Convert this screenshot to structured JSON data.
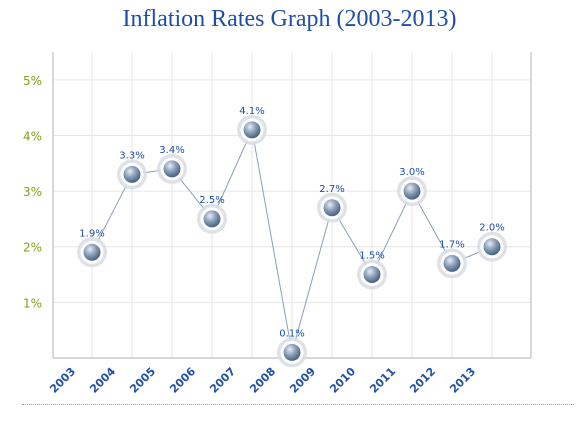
{
  "title": "Inflation Rates Graph (2003-2013)",
  "chart_data": {
    "type": "line",
    "title": "Inflation Rates Graph (2003-2013)",
    "xlabel": "",
    "ylabel": "",
    "categories": [
      "2003",
      "2004",
      "2005",
      "2006",
      "2007",
      "2008",
      "2009",
      "2010",
      "2011",
      "2012",
      "2013"
    ],
    "series": [
      {
        "values": [
          1.9,
          3.3,
          3.4,
          2.5,
          4.1,
          0.1,
          2.7,
          1.5,
          3.0,
          1.7,
          2.0
        ],
        "labels": [
          "1.9%",
          "3.3%",
          "3.4%",
          "2.5%",
          "4.1%",
          "0.1%",
          "2.7%",
          "1.5%",
          "3.0%",
          "1.7%",
          "2.0%"
        ]
      }
    ],
    "y_ticks": [
      1,
      2,
      3,
      4,
      5
    ],
    "y_tick_labels": [
      "1%",
      "2%",
      "3%",
      "4%",
      "5%"
    ],
    "ylim": [
      0,
      5.5
    ],
    "grid": true,
    "legend": "none"
  },
  "colors": {
    "title": "#1f4fa3",
    "y_tick_text": "#7fa11a",
    "x_tick_text": "#1f4fa3",
    "line": "#8a9fb8",
    "marker_center": "#e6ecf3",
    "marker_edge": "#3f5b7c",
    "marker_halo": "#d8dde4",
    "data_label": "#1f4fa3",
    "grid": "#e6e6e6",
    "axis": "#cccccc"
  }
}
